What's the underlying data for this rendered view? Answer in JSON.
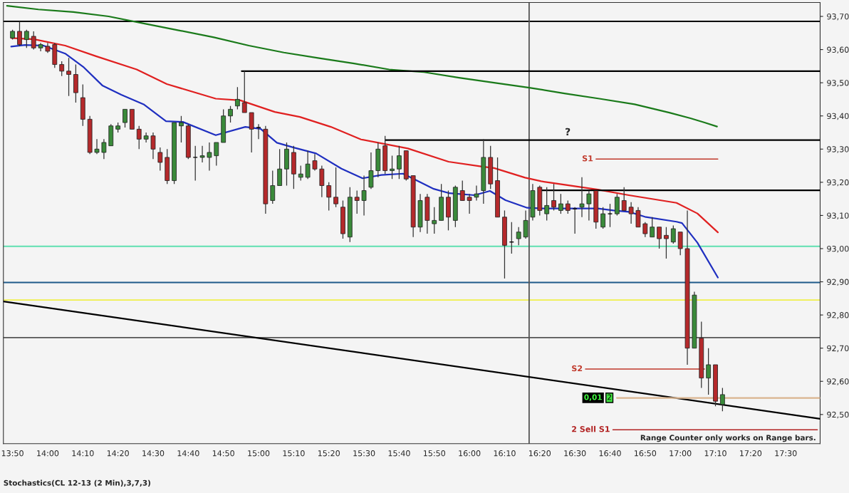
{
  "chart_data": {
    "type": "candlestick",
    "x": [
      13.8333,
      13.8667,
      13.9,
      13.9333,
      13.9667,
      14.0,
      14.0333,
      14.0667,
      14.1,
      14.1333,
      14.1667,
      14.2,
      14.2333,
      14.2667,
      14.3,
      14.3333,
      14.3667,
      14.4,
      14.4333,
      14.4667,
      14.5,
      14.5333,
      14.5667,
      14.6,
      14.6333,
      14.6667,
      14.7,
      14.7333,
      14.7667,
      14.8,
      14.8333,
      14.8667,
      14.9,
      14.9333,
      14.9667,
      15.0,
      15.0333,
      15.0667,
      15.1,
      15.1333,
      15.1667,
      15.2,
      15.2333,
      15.2667,
      15.3,
      15.3333,
      15.3667,
      15.4,
      15.4333,
      15.4667,
      15.5,
      15.5333,
      15.5667,
      15.6,
      15.6333,
      15.6667,
      15.7,
      15.7333,
      15.7667,
      15.8,
      15.8333,
      15.8667,
      15.9,
      15.9333,
      15.9667,
      16.0,
      16.0333,
      16.0667,
      16.1,
      16.1333,
      16.1667,
      16.2,
      16.2333,
      16.2667,
      16.3,
      16.3333,
      16.3667,
      16.4,
      16.4333,
      16.4667,
      16.5,
      16.5333,
      16.5667,
      16.6,
      16.6333,
      16.6667,
      16.7,
      16.7333,
      16.7667,
      16.8,
      16.8333,
      16.8667,
      16.9,
      16.9333,
      16.9667,
      17.0,
      17.0333,
      17.0667,
      17.1,
      17.1333,
      17.1667,
      17.2
    ],
    "ohlc": [
      [
        93.635,
        93.66,
        93.63,
        93.655
      ],
      [
        93.655,
        93.685,
        93.61,
        93.615
      ],
      [
        93.63,
        93.66,
        93.605,
        93.655
      ],
      [
        93.64,
        93.655,
        93.6,
        93.605
      ],
      [
        93.605,
        93.62,
        93.595,
        93.615
      ],
      [
        93.61,
        93.62,
        93.59,
        93.595
      ],
      [
        93.615,
        93.62,
        93.545,
        93.555
      ],
      [
        93.555,
        93.565,
        93.52,
        93.535
      ],
      [
        93.535,
        93.575,
        93.46,
        93.525
      ],
      [
        93.525,
        93.555,
        93.44,
        93.47
      ],
      [
        93.455,
        93.495,
        93.37,
        93.39
      ],
      [
        93.39,
        93.4,
        93.285,
        93.29
      ],
      [
        93.29,
        93.33,
        93.285,
        93.3
      ],
      [
        93.29,
        93.33,
        93.27,
        93.32
      ],
      [
        93.31,
        93.375,
        93.31,
        93.37
      ],
      [
        93.36,
        93.38,
        93.35,
        93.37
      ],
      [
        93.38,
        93.42,
        93.365,
        93.42
      ],
      [
        93.42,
        93.42,
        93.36,
        93.36
      ],
      [
        93.36,
        93.37,
        93.3,
        93.33
      ],
      [
        93.33,
        93.35,
        93.32,
        93.34
      ],
      [
        93.34,
        93.35,
        93.27,
        93.3
      ],
      [
        93.29,
        93.305,
        93.235,
        93.26
      ],
      [
        93.275,
        93.3,
        93.195,
        93.205
      ],
      [
        93.205,
        93.38,
        93.195,
        93.38
      ],
      [
        93.37,
        93.4,
        93.32,
        93.38
      ],
      [
        93.37,
        93.375,
        93.27,
        93.275
      ],
      [
        93.275,
        93.31,
        93.205,
        93.275
      ],
      [
        93.275,
        93.31,
        93.26,
        93.28
      ],
      [
        93.275,
        93.32,
        93.235,
        93.29
      ],
      [
        93.28,
        93.32,
        93.25,
        93.32
      ],
      [
        93.32,
        93.42,
        93.32,
        93.4
      ],
      [
        93.4,
        93.43,
        93.38,
        93.42
      ],
      [
        93.43,
        93.487,
        93.42,
        93.45
      ],
      [
        93.44,
        93.535,
        93.41,
        93.41
      ],
      [
        93.41,
        93.41,
        93.29,
        93.36
      ],
      [
        93.365,
        93.375,
        93.33,
        93.365
      ],
      [
        93.36,
        93.37,
        93.105,
        93.135
      ],
      [
        93.145,
        93.235,
        93.135,
        93.19
      ],
      [
        93.19,
        93.3,
        93.19,
        93.24
      ],
      [
        93.24,
        93.32,
        93.19,
        93.3
      ],
      [
        93.29,
        93.31,
        93.18,
        93.225
      ],
      [
        93.215,
        93.25,
        93.205,
        93.225
      ],
      [
        93.215,
        93.295,
        93.21,
        93.255
      ],
      [
        93.265,
        93.285,
        93.235,
        93.24
      ],
      [
        93.24,
        93.25,
        93.155,
        93.19
      ],
      [
        93.19,
        93.2,
        93.115,
        93.155
      ],
      [
        93.155,
        93.245,
        93.125,
        93.135
      ],
      [
        93.125,
        93.145,
        93.03,
        93.045
      ],
      [
        93.035,
        93.185,
        93.02,
        93.155
      ],
      [
        93.155,
        93.175,
        93.105,
        93.145
      ],
      [
        93.145,
        93.22,
        93.1,
        93.175
      ],
      [
        93.185,
        93.29,
        93.18,
        93.235
      ],
      [
        93.235,
        93.32,
        93.215,
        93.3
      ],
      [
        93.31,
        93.34,
        93.225,
        93.235
      ],
      [
        93.235,
        93.28,
        93.21,
        93.24
      ],
      [
        93.24,
        93.31,
        93.21,
        93.28
      ],
      [
        93.295,
        93.295,
        93.205,
        93.21
      ],
      [
        93.22,
        93.22,
        93.035,
        93.065
      ],
      [
        93.065,
        93.165,
        93.05,
        93.145
      ],
      [
        93.155,
        93.165,
        93.045,
        93.085
      ],
      [
        93.075,
        93.125,
        93.045,
        93.085
      ],
      [
        93.085,
        93.195,
        93.085,
        93.155
      ],
      [
        93.155,
        93.175,
        93.055,
        93.095
      ],
      [
        93.085,
        93.19,
        93.065,
        93.185
      ],
      [
        93.175,
        93.205,
        93.145,
        93.145
      ],
      [
        93.155,
        93.165,
        93.105,
        93.145
      ],
      [
        93.155,
        93.19,
        93.145,
        93.165
      ],
      [
        93.175,
        93.33,
        93.135,
        93.275
      ],
      [
        93.275,
        93.31,
        93.18,
        93.195
      ],
      [
        93.205,
        93.275,
        93.095,
        93.095
      ],
      [
        93.095,
        93.115,
        92.91,
        93.01
      ],
      [
        93.02,
        93.08,
        92.985,
        93.02
      ],
      [
        93.03,
        93.065,
        93.01,
        93.05
      ],
      [
        93.035,
        93.115,
        93.03,
        93.085
      ],
      [
        93.095,
        93.195,
        93.085,
        93.175
      ],
      [
        93.185,
        93.19,
        93.1,
        93.115
      ],
      [
        93.105,
        93.185,
        93.085,
        93.13
      ],
      [
        93.145,
        93.195,
        93.115,
        93.125
      ],
      [
        93.115,
        93.165,
        93.105,
        93.135
      ],
      [
        93.135,
        93.145,
        93.105,
        93.115
      ],
      [
        93.12,
        93.125,
        93.045,
        93.12
      ],
      [
        93.125,
        93.215,
        93.095,
        93.135
      ],
      [
        93.135,
        93.175,
        93.085,
        93.165
      ],
      [
        93.175,
        93.175,
        93.06,
        93.08
      ],
      [
        93.065,
        93.125,
        93.06,
        93.105
      ],
      [
        93.105,
        93.135,
        93.065,
        93.105
      ],
      [
        93.105,
        93.165,
        93.1,
        93.155
      ],
      [
        93.145,
        93.185,
        93.115,
        93.115
      ],
      [
        93.125,
        93.14,
        93.075,
        93.105
      ],
      [
        93.115,
        93.125,
        93.065,
        93.065
      ],
      [
        93.075,
        93.08,
        93.035,
        93.045
      ],
      [
        93.035,
        93.095,
        93.035,
        93.065
      ],
      [
        93.065,
        93.065,
        93.0,
        93.03
      ],
      [
        93.04,
        93.065,
        92.97,
        93.03
      ],
      [
        93.02,
        93.07,
        93.015,
        93.06
      ],
      [
        93.05,
        93.05,
        92.98,
        93.0
      ],
      [
        93.0,
        93.115,
        92.65,
        92.7
      ],
      [
        92.7,
        92.87,
        92.7,
        92.86
      ],
      [
        92.73,
        92.78,
        92.58,
        92.61
      ],
      [
        92.61,
        92.7,
        92.56,
        92.65
      ],
      [
        92.65,
        92.65,
        92.525,
        92.54
      ],
      [
        92.53,
        92.58,
        92.51,
        92.56
      ]
    ],
    "colors": [
      "#3a8a3a",
      "#b5292b",
      "#3a8a3a",
      "#b5292b",
      "#3a8a3a",
      "#b5292b",
      "#b5292b",
      "#b5292b",
      "#b5292b",
      "#b5292b",
      "#b5292b",
      "#b5292b",
      "#3a8a3a",
      "#3a8a3a",
      "#3a8a3a",
      "#3a8a3a",
      "#3a8a3a",
      "#b5292b",
      "#b5292b",
      "#3a8a3a",
      "#b5292b",
      "#b5292b",
      "#b5292b",
      "#3a8a3a",
      "#3a8a3a",
      "#b5292b",
      "#000000",
      "#3a8a3a",
      "#3a8a3a",
      "#3a8a3a",
      "#3a8a3a",
      "#3a8a3a",
      "#3a8a3a",
      "#b5292b",
      "#b5292b",
      "#000000",
      "#b5292b",
      "#3a8a3a",
      "#3a8a3a",
      "#3a8a3a",
      "#b5292b",
      "#3a8a3a",
      "#3a8a3a",
      "#b5292b",
      "#b5292b",
      "#b5292b",
      "#b5292b",
      "#b5292b",
      "#3a8a3a",
      "#b5292b",
      "#3a8a3a",
      "#3a8a3a",
      "#3a8a3a",
      "#b5292b",
      "#3a8a3a",
      "#3a8a3a",
      "#b5292b",
      "#b5292b",
      "#3a8a3a",
      "#b5292b",
      "#3a8a3a",
      "#3a8a3a",
      "#b5292b",
      "#3a8a3a",
      "#b5292b",
      "#b5292b",
      "#3a8a3a",
      "#3a8a3a",
      "#b5292b",
      "#b5292b",
      "#b5292b",
      "#000000",
      "#3a8a3a",
      "#3a8a3a",
      "#3a8a3a",
      "#b5292b",
      "#3a8a3a",
      "#b5292b",
      "#3a8a3a",
      "#b5292b",
      "#000000",
      "#3a8a3a",
      "#3a8a3a",
      "#b5292b",
      "#3a8a3a",
      "#000000",
      "#3a8a3a",
      "#b5292b",
      "#b5292b",
      "#b5292b",
      "#b5292b",
      "#3a8a3a",
      "#b5292b",
      "#b5292b",
      "#3a8a3a",
      "#b5292b",
      "#b5292b",
      "#3a8a3a",
      "#b5292b",
      "#3a8a3a",
      "#b5292b",
      "#3a8a3a"
    ],
    "series": [
      {
        "type": "line",
        "color": "#1a7a1a",
        "x": [
          13.807,
          13.956,
          14.122,
          14.289,
          14.455,
          14.621,
          14.788,
          14.954,
          15.12,
          15.287,
          15.453,
          15.619,
          15.785,
          15.951,
          16.117,
          16.284,
          16.45,
          16.616,
          16.783,
          16.948,
          17.048,
          17.115,
          17.174
        ],
        "values": [
          93.732,
          93.721,
          93.713,
          93.7,
          93.679,
          93.658,
          93.637,
          93.612,
          93.591,
          93.574,
          93.558,
          93.54,
          93.532,
          93.515,
          93.5,
          93.485,
          93.468,
          93.452,
          93.435,
          93.41,
          93.393,
          93.38,
          93.368
        ]
      },
      {
        "type": "line",
        "color": "#e02020",
        "x": [
          13.827,
          13.936,
          14.083,
          14.229,
          14.422,
          14.565,
          14.797,
          14.914,
          15.077,
          15.196,
          15.343,
          15.486,
          15.708,
          15.901,
          16.061,
          16.117,
          16.264,
          16.34,
          16.609,
          16.756,
          16.982,
          17.081,
          17.178
        ],
        "values": [
          93.635,
          93.631,
          93.612,
          93.58,
          93.54,
          93.496,
          93.452,
          93.447,
          93.412,
          93.397,
          93.367,
          93.329,
          93.302,
          93.262,
          93.247,
          93.243,
          93.214,
          93.203,
          93.178,
          93.161,
          93.138,
          93.106,
          93.049
        ]
      },
      {
        "type": "line",
        "color": "#1f2fc0",
        "x": [
          13.827,
          13.893,
          13.98,
          14.083,
          14.172,
          14.259,
          14.349,
          14.455,
          14.561,
          14.641,
          14.797,
          14.937,
          15.01,
          15.087,
          15.17,
          15.273,
          15.393,
          15.493,
          15.582,
          15.685,
          15.831,
          15.905,
          16.024,
          16.097,
          16.171,
          16.274,
          16.35,
          16.609,
          16.683,
          16.756,
          16.832,
          16.982,
          17.008,
          17.081,
          17.178
        ],
        "values": [
          93.609,
          93.614,
          93.612,
          93.588,
          93.546,
          93.492,
          93.464,
          93.435,
          93.384,
          93.382,
          93.342,
          93.367,
          93.361,
          93.319,
          93.304,
          93.287,
          93.241,
          93.212,
          93.222,
          93.226,
          93.18,
          93.167,
          93.161,
          93.174,
          93.146,
          93.123,
          93.121,
          93.121,
          93.115,
          93.111,
          93.096,
          93.081,
          93.077,
          93.018,
          92.913
        ]
      },
      {
        "type": "line",
        "color": "#000000",
        "x": [
          13.79,
          17.663
        ],
        "values": [
          92.841,
          92.487
        ]
      },
      {
        "type": "line",
        "color": "#000000",
        "x": [
          14.92,
          17.663
        ],
        "values": [
          93.535,
          93.535
        ]
      },
      {
        "type": "line",
        "color": "#000000",
        "x": [
          15.602,
          17.663
        ],
        "values": [
          93.327,
          93.327
        ]
      },
      {
        "type": "line",
        "color": "#000000",
        "x": [
          16.333,
          17.663
        ],
        "values": [
          93.176,
          93.176
        ]
      },
      {
        "type": "line",
        "name": "S1",
        "color": "#c0392b",
        "x": [
          16.6,
          17.178
        ],
        "values": [
          93.27,
          93.27
        ]
      },
      {
        "type": "line",
        "name": "S2",
        "color": "#c0392b",
        "x": [
          16.55,
          17.115
        ],
        "values": [
          92.637,
          92.637
        ]
      },
      {
        "type": "line",
        "color": "#d9b48f",
        "x": [
          16.699,
          17.663
        ],
        "values": [
          92.55,
          92.55
        ]
      },
      {
        "type": "line",
        "name": "2 Sell S1",
        "color": "#b22222",
        "x": [
          16.68,
          17.65
        ],
        "values": [
          92.454,
          92.454
        ]
      }
    ],
    "ref_lines": [
      {
        "axis": "y",
        "value": 93.685,
        "color": "#000000"
      },
      {
        "axis": "y",
        "value": 93.007,
        "color": "#5fe0b0"
      },
      {
        "axis": "y",
        "value": 92.898,
        "color": "#1f5a8a"
      },
      {
        "axis": "y",
        "value": 92.845,
        "color": "#f0f04a"
      },
      {
        "axis": "y",
        "value": 92.732,
        "color": "#555555"
      },
      {
        "axis": "x",
        "value": 16.283,
        "color": "#555555"
      }
    ],
    "annotations": [
      "?",
      "0,01",
      "2",
      "Range Counter only works on Range bars.",
      "Stochastics(CL 12-13 (2 Min),3,7,3)"
    ],
    "xlim": [
      13.79,
      17.663
    ],
    "ylim": [
      92.412,
      93.742
    ],
    "xticks": [
      {
        "value": 13.8333,
        "label": "13:50"
      },
      {
        "value": 14.0,
        "label": "14:00"
      },
      {
        "value": 14.1667,
        "label": "14:10"
      },
      {
        "value": 14.3333,
        "label": "14:20"
      },
      {
        "value": 14.5,
        "label": "14:30"
      },
      {
        "value": 14.6667,
        "label": "14:40"
      },
      {
        "value": 14.8333,
        "label": "14:50"
      },
      {
        "value": 15.0,
        "label": "15:00"
      },
      {
        "value": 15.1667,
        "label": "15:10"
      },
      {
        "value": 15.3333,
        "label": "15:20"
      },
      {
        "value": 15.5,
        "label": "15:30"
      },
      {
        "value": 15.6667,
        "label": "15:40"
      },
      {
        "value": 15.8333,
        "label": "15:50"
      },
      {
        "value": 16.0,
        "label": "16:00"
      },
      {
        "value": 16.1667,
        "label": "16:10"
      },
      {
        "value": 16.3333,
        "label": "16:20"
      },
      {
        "value": 16.5,
        "label": "16:30"
      },
      {
        "value": 16.6667,
        "label": "16:40"
      },
      {
        "value": 16.8333,
        "label": "16:50"
      },
      {
        "value": 17.0,
        "label": "17:00"
      },
      {
        "value": 17.1667,
        "label": "17:10"
      },
      {
        "value": 17.3333,
        "label": "17:20"
      },
      {
        "value": 17.5,
        "label": "17:30"
      }
    ],
    "yticks": [
      {
        "value": 93.7,
        "label": "93,70"
      },
      {
        "value": 93.6,
        "label": "93,60"
      },
      {
        "value": 93.5,
        "label": "93,50"
      },
      {
        "value": 93.4,
        "label": "93,40"
      },
      {
        "value": 93.3,
        "label": "93,30"
      },
      {
        "value": 93.2,
        "label": "93,20"
      },
      {
        "value": 93.1,
        "label": "93,10"
      },
      {
        "value": 93.0,
        "label": "93,00"
      },
      {
        "value": 92.9,
        "label": "92,90"
      },
      {
        "value": 92.8,
        "label": "92,80"
      },
      {
        "value": 92.7,
        "label": "92,70"
      },
      {
        "value": 92.6,
        "label": "92,60"
      },
      {
        "value": 92.5,
        "label": "92,50"
      }
    ],
    "grid": false,
    "legend": false
  }
}
